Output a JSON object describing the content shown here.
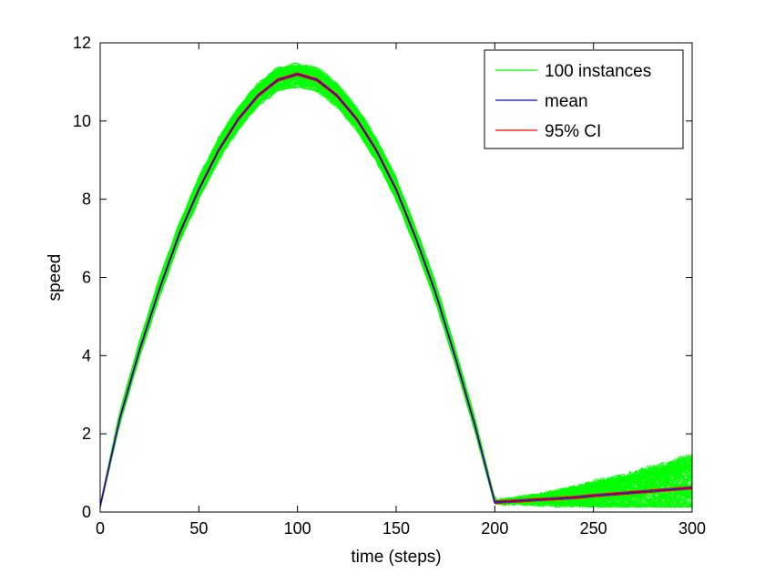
{
  "chart_data": {
    "type": "line",
    "title": "",
    "xlabel": "time (steps)",
    "ylabel": "speed",
    "xlim": [
      0,
      300
    ],
    "ylim": [
      0,
      12
    ],
    "xticks": [
      0,
      50,
      100,
      150,
      200,
      250,
      300
    ],
    "yticks": [
      0,
      2,
      4,
      6,
      8,
      10,
      12
    ],
    "grid": false,
    "legend_position": "top-right",
    "series": [
      {
        "name": "100 instances",
        "color": "#00ff00",
        "count": 100,
        "x": [
          0,
          10,
          20,
          30,
          40,
          50,
          60,
          70,
          80,
          90,
          100,
          110,
          120,
          130,
          140,
          150,
          160,
          170,
          180,
          190,
          200,
          210,
          220,
          230,
          240,
          250,
          260,
          270,
          280,
          290,
          300
        ],
        "band_low": [
          0.1,
          2.2,
          3.9,
          5.4,
          6.8,
          7.9,
          8.9,
          9.7,
          10.3,
          10.7,
          10.8,
          10.7,
          10.3,
          9.7,
          8.9,
          7.9,
          6.7,
          5.3,
          3.7,
          2.0,
          0.15,
          0.15,
          0.15,
          0.15,
          0.15,
          0.15,
          0.15,
          0.15,
          0.15,
          0.15,
          0.15
        ],
        "band_high": [
          0.2,
          2.6,
          4.4,
          6.0,
          7.4,
          8.6,
          9.6,
          10.4,
          11.0,
          11.4,
          11.5,
          11.4,
          11.0,
          10.4,
          9.6,
          8.6,
          7.3,
          5.9,
          4.2,
          2.4,
          0.35,
          0.55,
          0.65,
          0.8,
          0.9,
          1.0,
          1.05,
          1.1,
          1.2,
          1.3,
          1.4
        ]
      },
      {
        "name": "mean",
        "color": "#0000ff",
        "x": [
          0,
          10,
          20,
          30,
          40,
          50,
          60,
          70,
          80,
          90,
          100,
          110,
          120,
          130,
          140,
          150,
          160,
          170,
          180,
          190,
          200,
          210,
          220,
          230,
          240,
          250,
          260,
          270,
          280,
          290,
          300
        ],
        "y": [
          0.15,
          2.4,
          4.15,
          5.7,
          7.1,
          8.25,
          9.25,
          10.05,
          10.65,
          11.05,
          11.2,
          11.05,
          10.65,
          10.05,
          9.25,
          8.25,
          7.0,
          5.6,
          3.95,
          2.2,
          0.25,
          0.28,
          0.31,
          0.34,
          0.37,
          0.42,
          0.46,
          0.5,
          0.54,
          0.58,
          0.62
        ]
      },
      {
        "name": "95% CI",
        "color": "#ff0000",
        "x": [
          0,
          10,
          20,
          30,
          40,
          50,
          60,
          70,
          80,
          90,
          100,
          110,
          120,
          130,
          140,
          150,
          160,
          170,
          180,
          190,
          200,
          210,
          220,
          230,
          240,
          250,
          260,
          270,
          280,
          290,
          300
        ],
        "y": [
          0.15,
          2.4,
          4.15,
          5.7,
          7.1,
          8.25,
          9.25,
          10.05,
          10.65,
          11.05,
          11.2,
          11.05,
          10.65,
          10.05,
          9.25,
          8.25,
          7.0,
          5.6,
          3.95,
          2.2,
          0.25,
          0.28,
          0.31,
          0.34,
          0.37,
          0.42,
          0.46,
          0.5,
          0.54,
          0.58,
          0.62
        ]
      }
    ]
  }
}
